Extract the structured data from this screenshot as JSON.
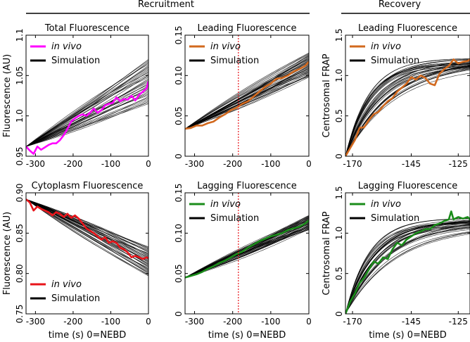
{
  "header": {
    "left": "Recruitment",
    "right": "Recovery"
  },
  "colors": {
    "sim": "#000000",
    "total": "#ff00ff",
    "leading": "#d2691e",
    "lagging": "#1a8c1a",
    "cytoplasm": "#e8141a",
    "nebd_marker": "#e8141a"
  },
  "chart_data": [
    {
      "id": "total",
      "type": "line",
      "title": "Total Fluorescence",
      "ylabel": "Fluorescence (AU)",
      "xlabel": "",
      "xlim": [
        -325,
        0
      ],
      "ylim": [
        0.95,
        1.1
      ],
      "xticks": [
        "-300",
        "-200",
        "-100",
        "0"
      ],
      "yticks": [
        "0.95",
        "1.0",
        "1.05",
        "1.1"
      ],
      "legend": "top-left",
      "legend_entries": [
        "in vivo",
        "Simulation"
      ],
      "color_key": "total",
      "series": [
        {
          "name": "in vivo",
          "x": [
            -325,
            -315,
            -305,
            -295,
            -285,
            -275,
            -265,
            -255,
            -245,
            -235,
            -225,
            -215,
            -205,
            -195,
            -185,
            -175,
            -165,
            -155,
            -145,
            -135,
            -125,
            -115,
            -105,
            -95,
            -85,
            -75,
            -65,
            -55,
            -45,
            -35,
            -25,
            -15,
            -5,
            0
          ],
          "y": [
            0.962,
            0.957,
            0.953,
            0.962,
            0.958,
            0.961,
            0.964,
            0.966,
            0.966,
            0.97,
            0.976,
            0.984,
            0.993,
            0.997,
            1.0,
            1.002,
            1.0,
            1.004,
            1.009,
            1.004,
            1.007,
            1.013,
            1.015,
            1.016,
            1.023,
            1.018,
            1.021,
            1.02,
            1.025,
            1.019,
            1.026,
            1.03,
            1.034,
            1.043
          ]
        },
        {
          "name": "Simulation",
          "x": [
            -325,
            0
          ],
          "y_low": [
            0.962,
            1.015
          ],
          "y_high": [
            0.962,
            1.07
          ]
        }
      ]
    },
    {
      "id": "lead_recruit",
      "type": "line",
      "title": "Leading Fluorescence",
      "ylabel": "",
      "xlabel": "",
      "xlim": [
        -325,
        0
      ],
      "ylim": [
        0,
        0.15
      ],
      "xticks": [
        "-300",
        "-200",
        "-100",
        "0"
      ],
      "yticks": [
        "0",
        "0.05",
        "0.10",
        "0.15"
      ],
      "legend": "top-left",
      "legend_entries": [
        "in vivo",
        "Simulation"
      ],
      "color_key": "leading",
      "vline_x": -185,
      "series": [
        {
          "name": "in vivo",
          "x": [
            -325,
            -310,
            -295,
            -280,
            -265,
            -250,
            -235,
            -220,
            -205,
            -190,
            -175,
            -160,
            -145,
            -130,
            -115,
            -100,
            -85,
            -70,
            -55,
            -40,
            -25,
            -10,
            0
          ],
          "y": [
            0.034,
            0.035,
            0.038,
            0.038,
            0.041,
            0.043,
            0.048,
            0.052,
            0.057,
            0.06,
            0.065,
            0.068,
            0.074,
            0.08,
            0.086,
            0.09,
            0.096,
            0.097,
            0.1,
            0.105,
            0.108,
            0.112,
            0.117
          ]
        },
        {
          "name": "Simulation",
          "x": [
            -325,
            0
          ],
          "y_low": [
            0.034,
            0.098
          ],
          "y_high": [
            0.034,
            0.128
          ]
        }
      ]
    },
    {
      "id": "lead_recovery",
      "type": "line",
      "title": "Leading Fluorescence",
      "ylabel": "Centrosomal FRAP",
      "xlabel": "",
      "xlim": [
        -173,
        -120
      ],
      "ylim": [
        0,
        1.5
      ],
      "xticks": [
        "-170",
        "-145",
        "-125"
      ],
      "yticks": [
        "0",
        "0.5",
        "1.0",
        "1.5"
      ],
      "legend": "top-left",
      "legend_entries": [
        "in vivo",
        "Simulation"
      ],
      "color_key": "leading",
      "series": [
        {
          "name": "in vivo",
          "x": [
            -173,
            -171,
            -169,
            -167,
            -165,
            -163,
            -161,
            -159,
            -157,
            -155,
            -153,
            -151,
            -149,
            -147,
            -145,
            -143,
            -141,
            -139,
            -137,
            -135,
            -133,
            -131,
            -129,
            -127,
            -125,
            -123,
            -121,
            -120
          ],
          "y": [
            0.0,
            0.1,
            0.2,
            0.35,
            0.36,
            0.45,
            0.52,
            0.55,
            0.62,
            0.68,
            0.72,
            0.8,
            0.85,
            0.9,
            0.98,
            0.95,
            1.0,
            0.97,
            0.9,
            0.88,
            1.02,
            1.08,
            1.12,
            1.2,
            1.15,
            1.17,
            1.18,
            1.2
          ]
        },
        {
          "name": "Simulation",
          "x": [
            -173,
            -120
          ],
          "asymptote_low": 1.12,
          "asymptote_high": 1.22
        }
      ]
    },
    {
      "id": "cyto",
      "type": "line",
      "title": "Cytoplasm Fluorescence",
      "ylabel": "Fluorescence (AU)",
      "xlabel": "time (s) 0=NEBD",
      "xlim": [
        -325,
        0
      ],
      "ylim": [
        0.75,
        0.9
      ],
      "xticks": [
        "-300",
        "-200",
        "-100",
        "0"
      ],
      "yticks": [
        "0.75",
        "0.80",
        "0.85",
        "0.90"
      ],
      "legend": "bottom-left",
      "legend_entries": [
        "in vivo",
        "Simulation"
      ],
      "color_key": "cytoplasm",
      "series": [
        {
          "name": "in vivo",
          "x": [
            -325,
            -315,
            -305,
            -295,
            -285,
            -275,
            -265,
            -255,
            -245,
            -235,
            -225,
            -215,
            -205,
            -195,
            -185,
            -175,
            -165,
            -155,
            -145,
            -135,
            -125,
            -115,
            -105,
            -95,
            -85,
            -75,
            -65,
            -55,
            -45,
            -35,
            -25,
            -15,
            -5,
            0
          ],
          "y": [
            0.892,
            0.888,
            0.878,
            0.883,
            0.88,
            0.878,
            0.876,
            0.872,
            0.876,
            0.874,
            0.87,
            0.874,
            0.869,
            0.872,
            0.868,
            0.862,
            0.856,
            0.853,
            0.85,
            0.846,
            0.842,
            0.845,
            0.838,
            0.84,
            0.838,
            0.832,
            0.83,
            0.826,
            0.82,
            0.822,
            0.82,
            0.818,
            0.82,
            0.819
          ]
        },
        {
          "name": "Simulation",
          "x": [
            -325,
            0
          ],
          "y_low": [
            0.892,
            0.797
          ],
          "y_high": [
            0.892,
            0.833
          ]
        }
      ]
    },
    {
      "id": "lag_recruit",
      "type": "line",
      "title": "Lagging Fluorescence",
      "ylabel": "",
      "xlabel": "time (s) 0=NEBD",
      "xlim": [
        -325,
        0
      ],
      "ylim": [
        0,
        0.15
      ],
      "xticks": [
        "-300",
        "-200",
        "-100",
        "0"
      ],
      "yticks": [
        "0",
        "0.05",
        "0.10",
        "0.15"
      ],
      "legend": "top-left",
      "legend_entries": [
        "in vivo",
        "Simulation"
      ],
      "color_key": "lagging",
      "vline_x": -185,
      "series": [
        {
          "name": "in vivo",
          "x": [
            -325,
            -310,
            -295,
            -280,
            -265,
            -250,
            -235,
            -220,
            -205,
            -190,
            -175,
            -160,
            -145,
            -130,
            -115,
            -100,
            -85,
            -70,
            -55,
            -40,
            -25,
            -10,
            0
          ],
          "y": [
            0.045,
            0.047,
            0.049,
            0.052,
            0.056,
            0.059,
            0.063,
            0.066,
            0.07,
            0.074,
            0.077,
            0.082,
            0.086,
            0.09,
            0.093,
            0.096,
            0.098,
            0.1,
            0.104,
            0.106,
            0.108,
            0.112,
            0.116
          ]
        },
        {
          "name": "Simulation",
          "x": [
            -325,
            0
          ],
          "y_low": [
            0.045,
            0.104
          ],
          "y_high": [
            0.045,
            0.122
          ]
        }
      ]
    },
    {
      "id": "lag_recovery",
      "type": "line",
      "title": "Lagging Fluorescence",
      "ylabel": "Centrosomal FRAP",
      "xlabel": "time (s) 0=NEBD",
      "xlim": [
        -173,
        -120
      ],
      "ylim": [
        0,
        1.5
      ],
      "xticks": [
        "-170",
        "-145",
        "-125"
      ],
      "yticks": [
        "0",
        "0.5",
        "1.0",
        "1.5"
      ],
      "legend": "top-left",
      "legend_entries": [
        "in vivo",
        "Simulation"
      ],
      "color_key": "lagging",
      "series": [
        {
          "name": "in vivo",
          "x": [
            -173,
            -171,
            -169,
            -167,
            -165,
            -163,
            -161,
            -159,
            -157,
            -155,
            -153,
            -151,
            -149,
            -147,
            -145,
            -143,
            -141,
            -139,
            -137,
            -135,
            -133,
            -131,
            -129,
            -128,
            -127,
            -125,
            -123,
            -121,
            -120
          ],
          "y": [
            0.0,
            0.15,
            0.25,
            0.38,
            0.45,
            0.55,
            0.65,
            0.62,
            0.7,
            0.68,
            0.8,
            0.88,
            0.85,
            0.92,
            0.96,
            1.0,
            1.02,
            1.05,
            1.05,
            1.1,
            1.12,
            1.15,
            1.17,
            1.27,
            1.17,
            1.2,
            1.18,
            1.2,
            1.17
          ]
        },
        {
          "name": "Simulation",
          "x": [
            -173,
            -120
          ],
          "asymptote_low": 1.08,
          "asymptote_high": 1.2
        }
      ]
    }
  ]
}
